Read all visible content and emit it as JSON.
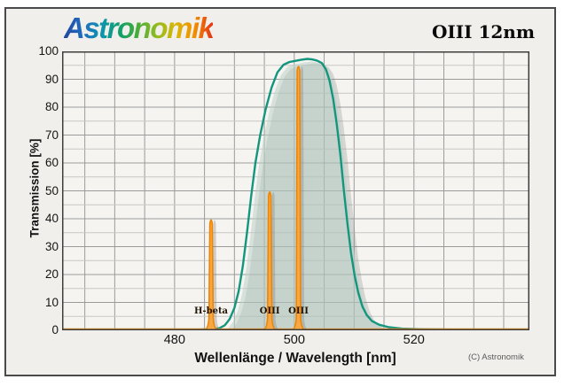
{
  "header": {
    "brand": "Astronomik",
    "brand_gradient": [
      "#23479f",
      "#1e6cc0",
      "#0d95b0",
      "#0fa06b",
      "#4aad3a",
      "#93bb1f",
      "#d8b606",
      "#f29100",
      "#e43117"
    ],
    "filter_name": "OIII 12nm"
  },
  "footer": {
    "copyright": "(C) Astronomik"
  },
  "chart_data": {
    "type": "area",
    "title": "OIII 12nm",
    "xlabel": "Wellenlänge / Wavelength [nm]",
    "ylabel": "Transmission [%]",
    "xlim": [
      461.2,
      539.3
    ],
    "ylim": [
      0,
      100
    ],
    "x_major_ticks": [
      480,
      500,
      520
    ],
    "x_grid_step_nm": 5,
    "y_major_ticks": [
      0,
      10,
      20,
      30,
      40,
      50,
      60,
      70,
      80,
      90,
      100
    ],
    "y_minor_step": 5,
    "grid": true,
    "legend": "none",
    "colors": {
      "curve": "#14967E",
      "band_fill": "rgba(185,209,199,0.55)",
      "shadow": "rgba(120,120,120,0.25)",
      "spike_shadow": "rgba(120,120,120,0.32)",
      "emission_stroke": "#ED8505",
      "emission_fill": "#F7A844",
      "baseline": "#F7941E",
      "grid_major": "#9b9b9b",
      "grid_minor": "#c7c7c6",
      "plot_bg": "#f5f4f1",
      "plot_border": "#3e3e3e",
      "label_text": "#201405"
    },
    "filter_curve": {
      "name": "OIII 12nm transmission",
      "points": [
        [
          461,
          0.3
        ],
        [
          472,
          0.3
        ],
        [
          480,
          0.3
        ],
        [
          484,
          0.3
        ],
        [
          486.5,
          0.4
        ],
        [
          487.5,
          0.8
        ],
        [
          488.4,
          1.8
        ],
        [
          489.2,
          4
        ],
        [
          490,
          8
        ],
        [
          490.7,
          14
        ],
        [
          491.4,
          23
        ],
        [
          492.1,
          35
        ],
        [
          492.8,
          48
        ],
        [
          493.5,
          60
        ],
        [
          494.3,
          70
        ],
        [
          495.2,
          79
        ],
        [
          496.2,
          87
        ],
        [
          497.2,
          92.5
        ],
        [
          498.2,
          95.2
        ],
        [
          499.2,
          96.2
        ],
        [
          500.2,
          96.6
        ],
        [
          501.2,
          97
        ],
        [
          502.2,
          97.3
        ],
        [
          503,
          97.1
        ],
        [
          503.8,
          96.7
        ],
        [
          504.6,
          95.8
        ],
        [
          505.3,
          93.5
        ],
        [
          505.9,
          89.5
        ],
        [
          506.5,
          83
        ],
        [
          507.1,
          74
        ],
        [
          507.7,
          63
        ],
        [
          508.3,
          50
        ],
        [
          508.9,
          38
        ],
        [
          509.5,
          27.5
        ],
        [
          510.1,
          19.5
        ],
        [
          510.7,
          13.5
        ],
        [
          511.4,
          8.5
        ],
        [
          512.1,
          5.5
        ],
        [
          513,
          3.3
        ],
        [
          514.2,
          2
        ],
        [
          515.8,
          1.1
        ],
        [
          518,
          0.6
        ],
        [
          521,
          0.4
        ],
        [
          527,
          0.3
        ],
        [
          534,
          0.3
        ],
        [
          539,
          0.3
        ]
      ]
    },
    "emission_lines": [
      {
        "label": "H-beta",
        "nm": 486.1,
        "peak": 41
      },
      {
        "label": "OIII",
        "nm": 495.9,
        "peak": 51
      },
      {
        "label": "OIII",
        "nm": 500.7,
        "peak": 96
      }
    ]
  }
}
